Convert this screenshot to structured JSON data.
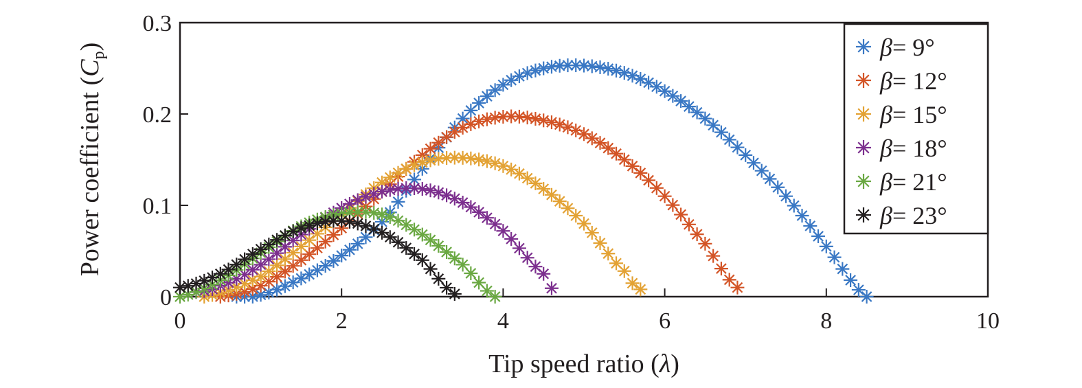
{
  "chart_data": {
    "type": "scatter",
    "xlabel_prefix": "Tip speed ratio (",
    "xlabel_symbol": "λ",
    "xlabel_suffix": ")",
    "ylabel_prefix": "Power coefficient (",
    "ylabel_symbol": "C",
    "ylabel_subscript": "p",
    "ylabel_suffix": ")",
    "xlim": [
      0,
      10
    ],
    "ylim": [
      0,
      0.3
    ],
    "xticks": [
      "0",
      "2",
      "4",
      "6",
      "8",
      "10"
    ],
    "yticks": [
      "0",
      "0.1",
      "0.2",
      "0.3"
    ],
    "grid": false,
    "legend_placement": "top-right",
    "marker": "asterisk",
    "series": [
      {
        "name": "9°",
        "color": "#3a78c4",
        "x": [
          0.7,
          1.0,
          1.5,
          2.0,
          2.5,
          3.0,
          3.5,
          4.0,
          4.5,
          5.0,
          5.5,
          6.0,
          6.5,
          7.0,
          7.5,
          8.0,
          8.5
        ],
        "y": [
          0.0,
          0.002,
          0.02,
          0.045,
          0.082,
          0.14,
          0.195,
          0.232,
          0.25,
          0.253,
          0.245,
          0.225,
          0.195,
          0.155,
          0.11,
          0.055,
          0.0
        ]
      },
      {
        "name": "12°",
        "color": "#d35426",
        "x": [
          0.5,
          1.0,
          1.5,
          2.0,
          2.5,
          3.0,
          3.5,
          4.0,
          4.5,
          5.0,
          5.5,
          6.0,
          6.5,
          6.9
        ],
        "y": [
          0.0,
          0.012,
          0.04,
          0.075,
          0.115,
          0.155,
          0.185,
          0.197,
          0.193,
          0.178,
          0.15,
          0.11,
          0.058,
          0.01
        ]
      },
      {
        "name": "15°",
        "color": "#e3a234",
        "x": [
          0.3,
          1.0,
          1.5,
          2.0,
          2.5,
          3.0,
          3.5,
          4.0,
          4.5,
          5.0,
          5.5,
          5.7
        ],
        "y": [
          0.0,
          0.022,
          0.055,
          0.09,
          0.125,
          0.147,
          0.152,
          0.143,
          0.118,
          0.08,
          0.028,
          0.008
        ]
      },
      {
        "name": "18°",
        "color": "#7c2f8e",
        "x": [
          0.2,
          0.5,
          1.0,
          1.5,
          2.0,
          2.5,
          3.0,
          3.5,
          4.0,
          4.5,
          4.65
        ],
        "y": [
          0.005,
          0.012,
          0.035,
          0.068,
          0.097,
          0.115,
          0.118,
          0.103,
          0.072,
          0.025,
          0.005
        ]
      },
      {
        "name": "21°",
        "color": "#6aa842",
        "x": [
          0.0,
          0.5,
          1.0,
          1.5,
          2.0,
          2.5,
          3.0,
          3.5,
          3.9
        ],
        "y": [
          0.0,
          0.018,
          0.048,
          0.077,
          0.091,
          0.09,
          0.068,
          0.035,
          0.0
        ]
      },
      {
        "name": "23°",
        "color": "#231f20",
        "x": [
          0.0,
          0.5,
          1.0,
          1.5,
          2.0,
          2.5,
          3.0,
          3.4
        ],
        "y": [
          0.01,
          0.025,
          0.052,
          0.075,
          0.083,
          0.07,
          0.04,
          0.003
        ]
      }
    ],
    "legend_symbol": "β",
    "legend_eq": "= "
  }
}
